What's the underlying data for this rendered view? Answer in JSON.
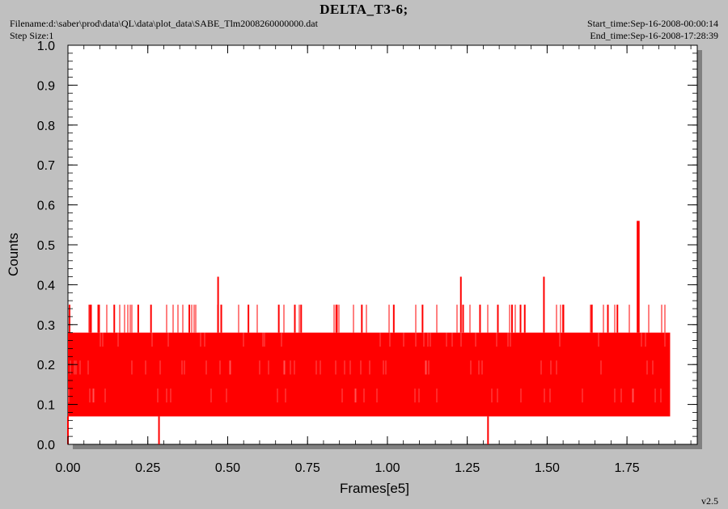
{
  "header": {
    "title": "DELTA_T3-6;",
    "filename": "Filename:d:\\saber\\prod\\data\\QL\\data\\plot_data\\SABE_Tlm2008260000000.dat",
    "step_size": "Step Size:1",
    "start_time": "Start_time:Sep-16-2008-00:00:14",
    "end_time": "End_time:Sep-16-2008-17:28:39"
  },
  "footer": {
    "version": "v2.5"
  },
  "colors": {
    "series": "#ff0000",
    "plot_bg": "#ffffff",
    "page_bg": "#c0c0c0",
    "shadow": "#808080"
  },
  "chart_data": {
    "type": "line",
    "title": "DELTA_T3-6;",
    "xlabel": "Frames[e5]",
    "ylabel": "Counts",
    "xlim": [
      0,
      1.97
    ],
    "ylim": [
      0,
      1.0
    ],
    "x_ticks": [
      "0.00",
      "0.25",
      "0.50",
      "0.75",
      "1.00",
      "1.25",
      "1.50",
      "1.75"
    ],
    "y_ticks": [
      "0.0",
      "0.1",
      "0.2",
      "0.3",
      "0.4",
      "0.5",
      "0.6",
      "0.7",
      "0.8",
      "0.9",
      "1.0"
    ],
    "grid": false,
    "series": [
      {
        "color": "#ff0000",
        "x_range": [
          0,
          1.885
        ],
        "levels": [
          0.07,
          0.14,
          0.21,
          0.28,
          0.35
        ],
        "base_band": [
          0.07,
          0.28
        ],
        "baseline_level": 0.14,
        "spikes": [
          {
            "x": 0.005,
            "y": 0.35
          },
          {
            "x": 0.07,
            "y": 0.35
          },
          {
            "x": 0.095,
            "y": 0.35
          },
          {
            "x": 0.145,
            "y": 0.35
          },
          {
            "x": 0.22,
            "y": 0.35
          },
          {
            "x": 0.26,
            "y": 0.35
          },
          {
            "x": 0.38,
            "y": 0.35
          },
          {
            "x": 0.47,
            "y": 0.42
          },
          {
            "x": 0.48,
            "y": 0.35
          },
          {
            "x": 0.565,
            "y": 0.35
          },
          {
            "x": 0.66,
            "y": 0.35
          },
          {
            "x": 0.73,
            "y": 0.35
          },
          {
            "x": 0.84,
            "y": 0.35
          },
          {
            "x": 0.92,
            "y": 0.35
          },
          {
            "x": 1.02,
            "y": 0.35
          },
          {
            "x": 1.11,
            "y": 0.35
          },
          {
            "x": 1.23,
            "y": 0.42
          },
          {
            "x": 1.29,
            "y": 0.35
          },
          {
            "x": 1.39,
            "y": 0.35
          },
          {
            "x": 1.43,
            "y": 0.35
          },
          {
            "x": 1.49,
            "y": 0.42
          },
          {
            "x": 1.55,
            "y": 0.35
          },
          {
            "x": 1.64,
            "y": 0.35
          },
          {
            "x": 1.72,
            "y": 0.35
          },
          {
            "x": 1.783,
            "y": 0.56
          },
          {
            "x": 1.787,
            "y": 0.56
          }
        ],
        "dips": [
          {
            "x": 0.0,
            "y": 0.0
          },
          {
            "x": 0.285,
            "y": 0.0
          },
          {
            "x": 1.315,
            "y": 0.0
          }
        ]
      }
    ]
  }
}
